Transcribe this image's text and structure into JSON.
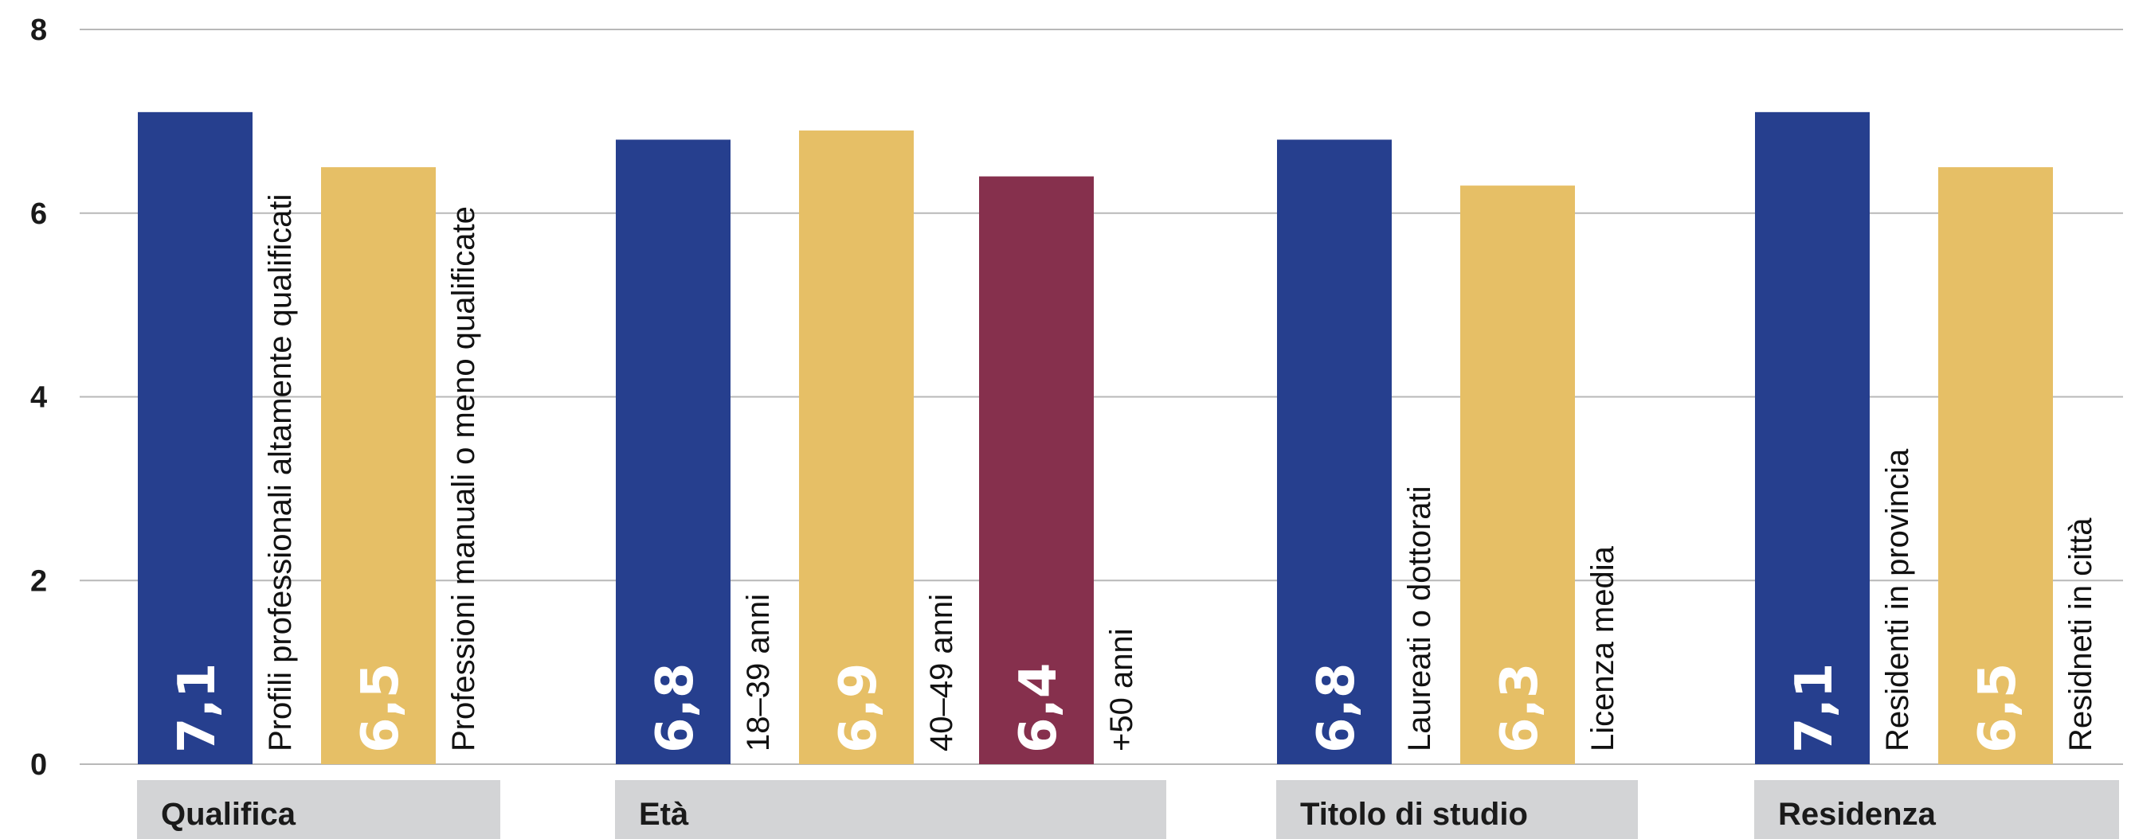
{
  "colors": {
    "blue": "#263f8e",
    "yellow": "#e6bf66",
    "maroon": "#86304d",
    "grid": "#b8b8b8",
    "group_band": "#d3d4d6"
  },
  "chart_data": {
    "type": "bar",
    "ylim": [
      0,
      8
    ],
    "yticks": [
      "0",
      "2",
      "4",
      "6",
      "8"
    ],
    "grid": true,
    "groups": [
      {
        "label": "Qualifica",
        "bars": [
          {
            "label": "Profili professionali altamente qualificati",
            "value": 7.1,
            "display": "7,1",
            "color": "blue"
          },
          {
            "label": "Professioni manuali o meno qualificate",
            "value": 6.5,
            "display": "6,5",
            "color": "yellow"
          }
        ]
      },
      {
        "label": "Età",
        "bars": [
          {
            "label": "18–39 anni",
            "value": 6.8,
            "display": "6,8",
            "color": "blue"
          },
          {
            "label": "40–49 anni",
            "value": 6.9,
            "display": "6,9",
            "color": "yellow"
          },
          {
            "label": "+50 anni",
            "value": 6.4,
            "display": "6,4",
            "color": "maroon"
          }
        ]
      },
      {
        "label": "Titolo di studio",
        "bars": [
          {
            "label": "Laureati o dottorati",
            "value": 6.8,
            "display": "6,8",
            "color": "blue"
          },
          {
            "label": "Licenza media",
            "value": 6.3,
            "display": "6,3",
            "color": "yellow"
          }
        ]
      },
      {
        "label": "Residenza",
        "bars": [
          {
            "label": "Residenti in provincia",
            "value": 7.1,
            "display": "7,1",
            "color": "blue"
          },
          {
            "label": "Residneti in città",
            "value": 6.5,
            "display": "6,5",
            "color": "yellow"
          }
        ]
      }
    ]
  }
}
